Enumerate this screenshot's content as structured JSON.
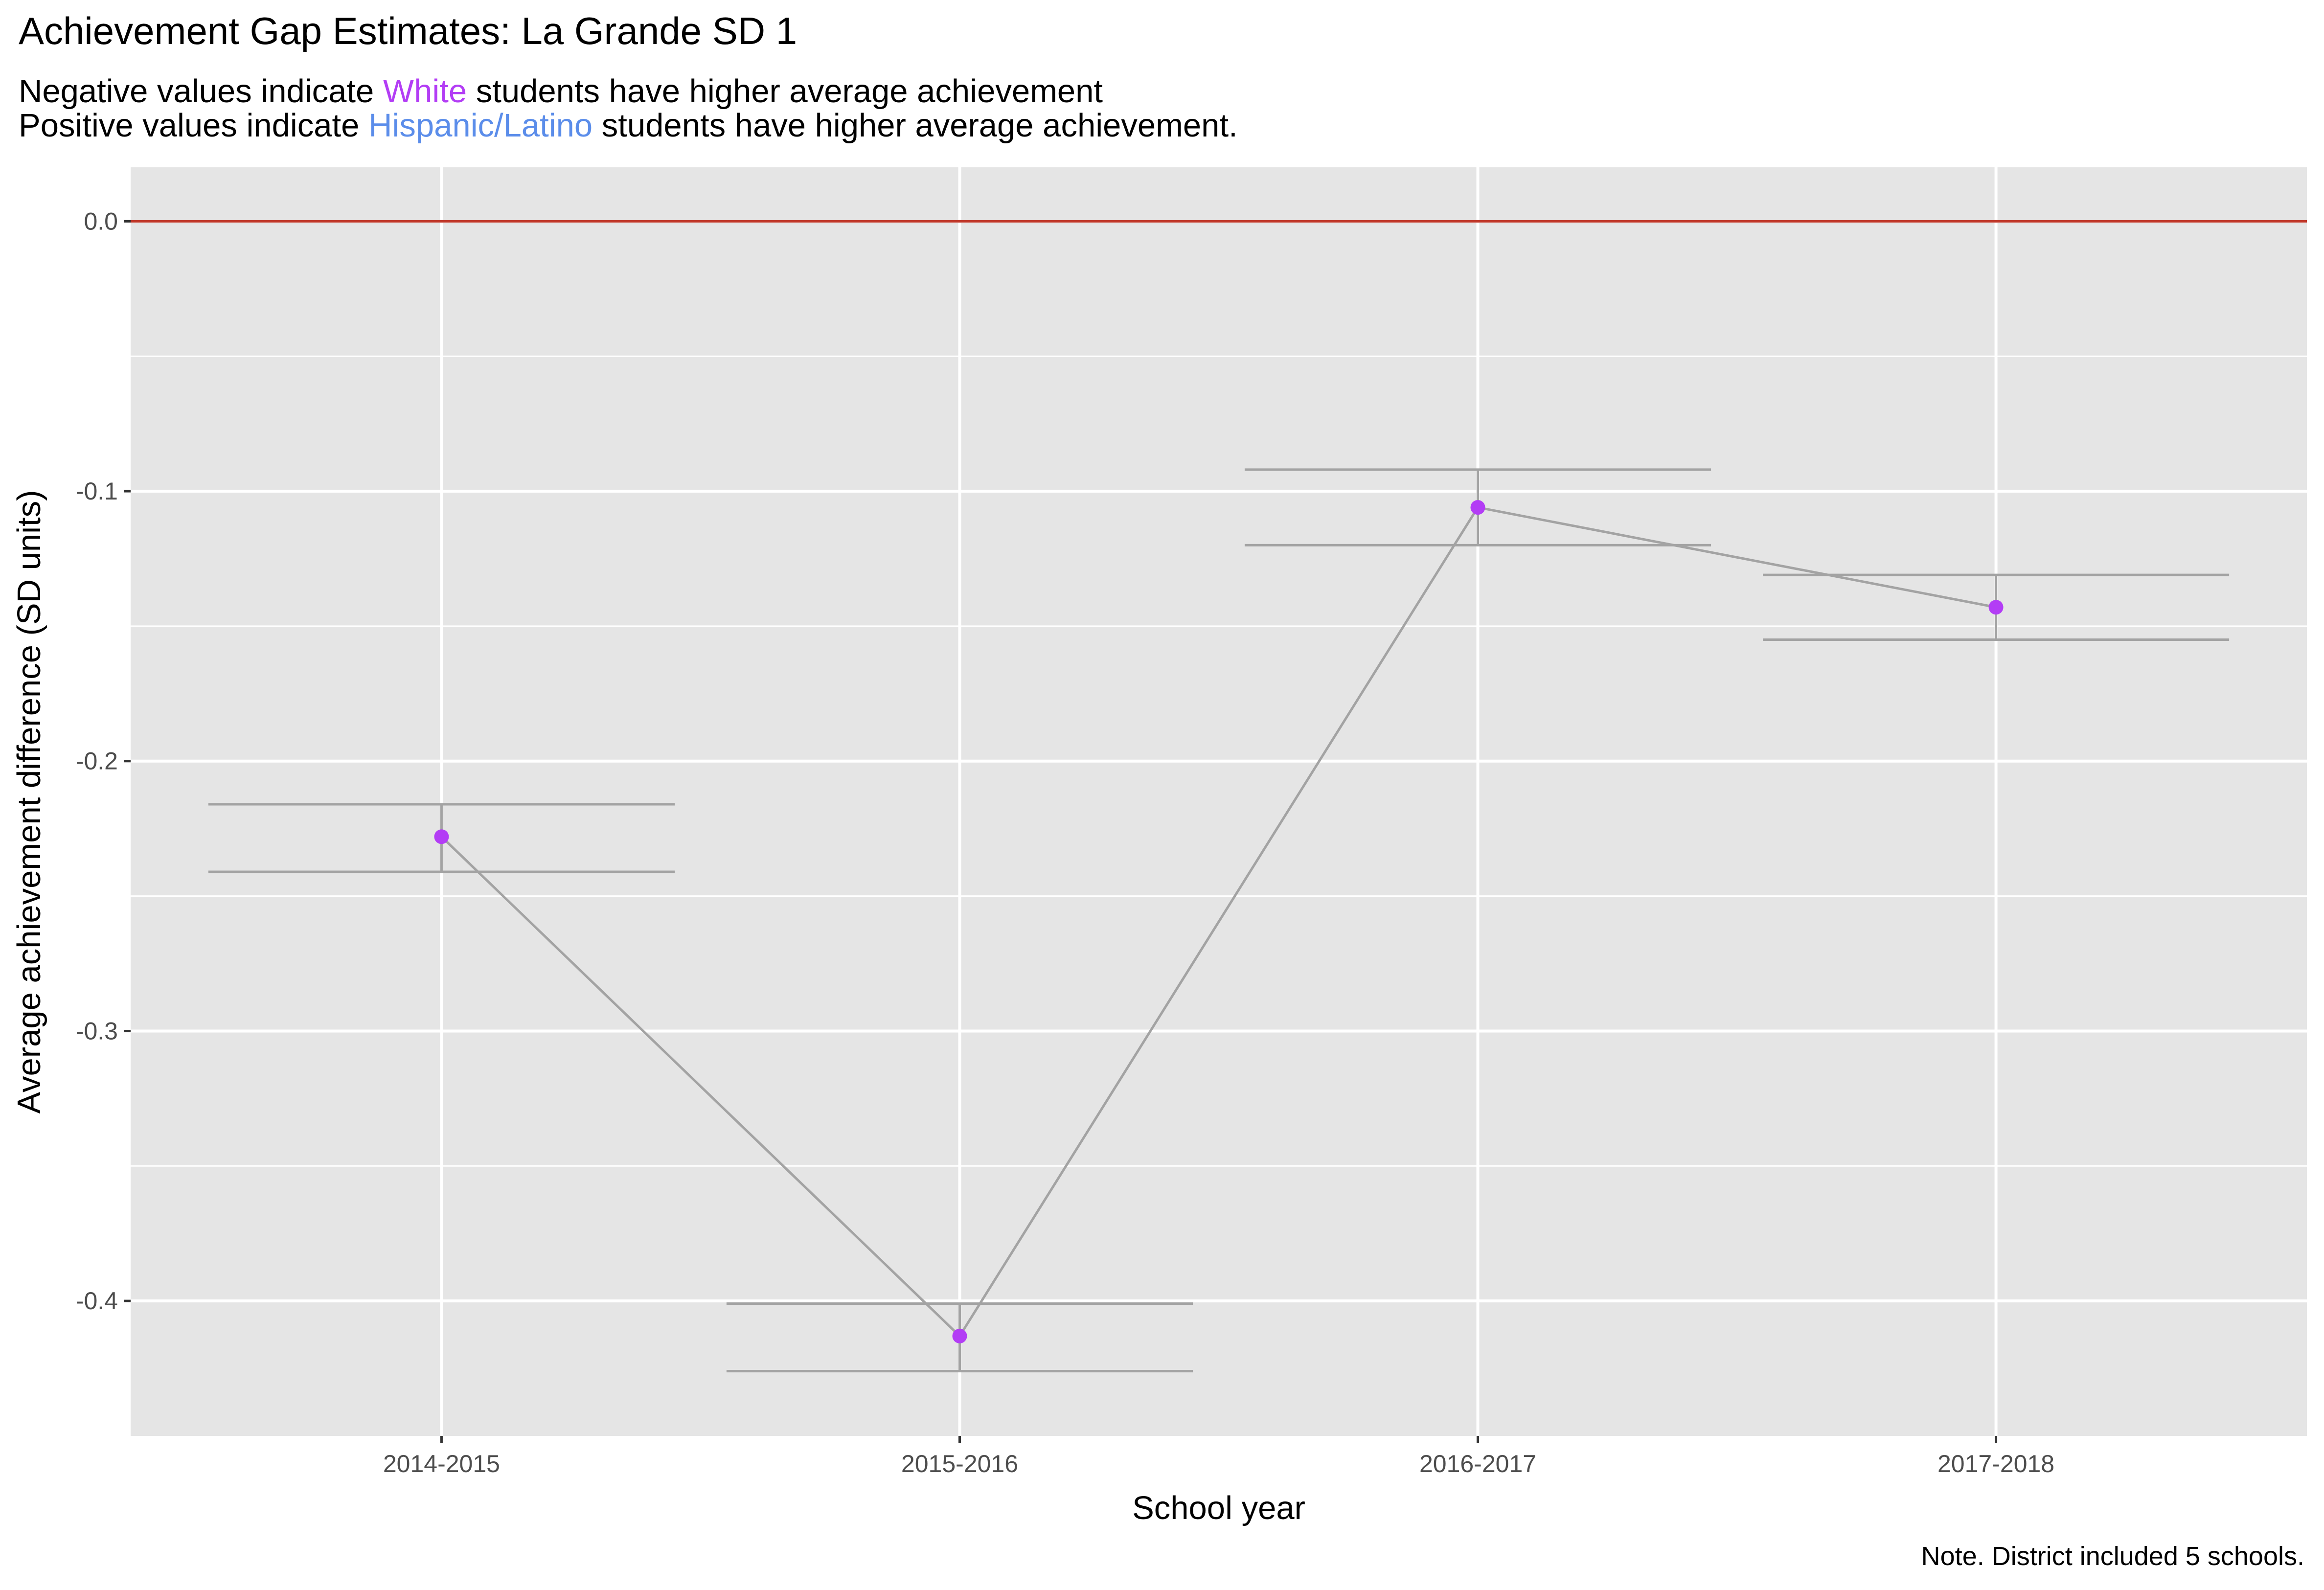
{
  "chart_data": {
    "type": "line",
    "title": "Achievement Gap Estimates: La Grande SD 1",
    "subtitle": {
      "line1": {
        "before": "Negative values indicate ",
        "highlight": "White",
        "after": " students have higher average achievement"
      },
      "line2": {
        "before": "Positive values indicate ",
        "highlight": "Hispanic/Latino",
        "after": " students have higher average achievement."
      }
    },
    "xlabel": "School year",
    "ylabel": "Average achievement difference (SD units)",
    "categories": [
      "2014-2015",
      "2015-2016",
      "2016-2017",
      "2017-2018"
    ],
    "series": [
      {
        "values": [
          -0.228,
          -0.413,
          -0.106,
          -0.143
        ],
        "upper": [
          -0.216,
          -0.401,
          -0.092,
          -0.131
        ],
        "lower": [
          -0.241,
          -0.426,
          -0.12,
          -0.155
        ]
      }
    ],
    "ylim": [
      -0.45,
      0.02
    ],
    "yticks": [
      0.0,
      -0.1,
      -0.2,
      -0.3,
      -0.4
    ],
    "ytick_labels": [
      "0.0",
      "-0.1",
      "-0.2",
      "-0.3",
      "-0.4"
    ],
    "reference_line": 0,
    "grid": true,
    "caption": "Note. District included 5 schools.",
    "colors": {
      "point": "#B33DF5",
      "line": "#A3A3A3",
      "errorbar": "#A3A3A3",
      "reference": "#C0392B",
      "panel": "#E5E5E5",
      "grid": "#FFFFFF",
      "white_label": "#B33DF5",
      "hispanic_label": "#5B8DEA"
    }
  }
}
